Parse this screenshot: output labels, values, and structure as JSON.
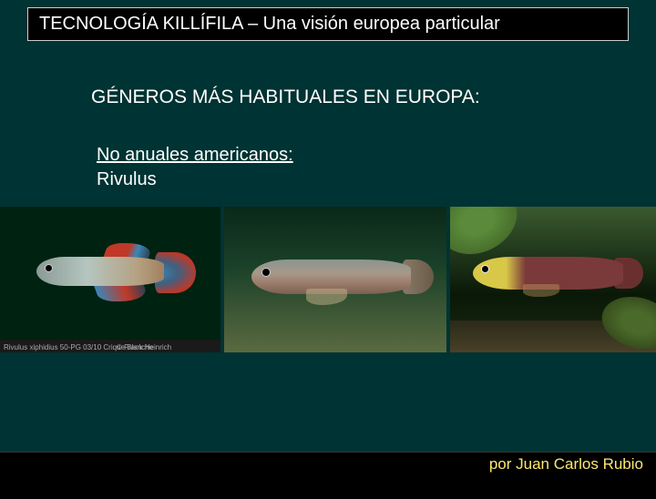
{
  "title": "TECNOLOGÍA KILLÍFILA – Una visión europea particular",
  "heading": "GÉNEROS MÁS HABITUALES EN EUROPA:",
  "sub_heading": "No anuales americanos:",
  "genus": "Rivulus",
  "img1": {
    "caption_left": "Rivulus xiphidius 50-PG 03/10 Crique Blanche",
    "caption_right": "© Frank Heinrich"
  },
  "footer": "por Juan Carlos Rubio",
  "colors": {
    "slide_bg": "#003333",
    "title_bg": "#000000",
    "title_border": "#cccccc",
    "text": "#ffffff",
    "footer_text": "#fbe870"
  }
}
